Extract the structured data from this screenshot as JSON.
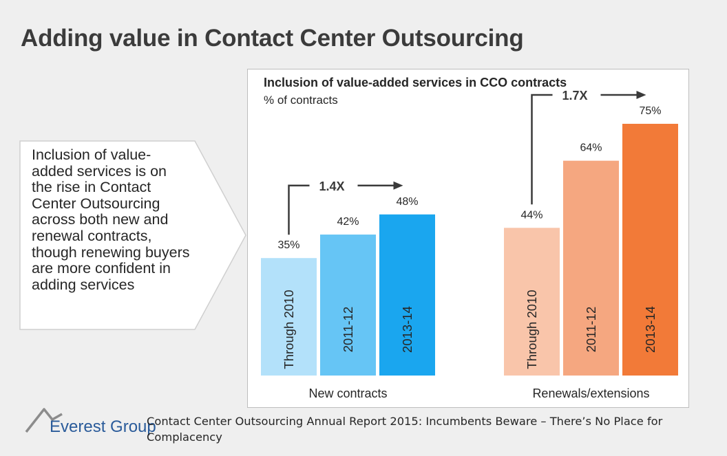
{
  "page": {
    "title": "Adding value in Contact Center Outsourcing",
    "callout": "Inclusion of value-added services is on the rise in Contact Center Outsourcing across both new and renewal contracts, though renewing buyers are more confident in adding services",
    "footer": {
      "logo_text": "Everest Group",
      "source": "Contact Center Outsourcing Annual Report 2015: Incumbents Beware – There’s No Place for Complacency"
    }
  },
  "chart_data": {
    "type": "bar",
    "title": "Inclusion of value-added services in CCO contracts",
    "subtitle": "% of contracts",
    "unit": "%",
    "ylim": [
      0,
      100
    ],
    "grid": false,
    "groups": [
      {
        "name": "New contracts",
        "categories": [
          "Through 2010",
          "2011-12",
          "2013-14"
        ],
        "values": [
          35,
          42,
          48
        ],
        "colors": [
          "#b3e1fa",
          "#66c5f5",
          "#1aa6ef"
        ],
        "growth_label": "1.4X"
      },
      {
        "name": "Renewals/extensions",
        "categories": [
          "Through 2010",
          "2011-12",
          "2013-14"
        ],
        "values": [
          44,
          64,
          75
        ],
        "colors": [
          "#f9c5aa",
          "#f5a780",
          "#f27a38"
        ],
        "growth_label": "1.7X"
      }
    ]
  }
}
